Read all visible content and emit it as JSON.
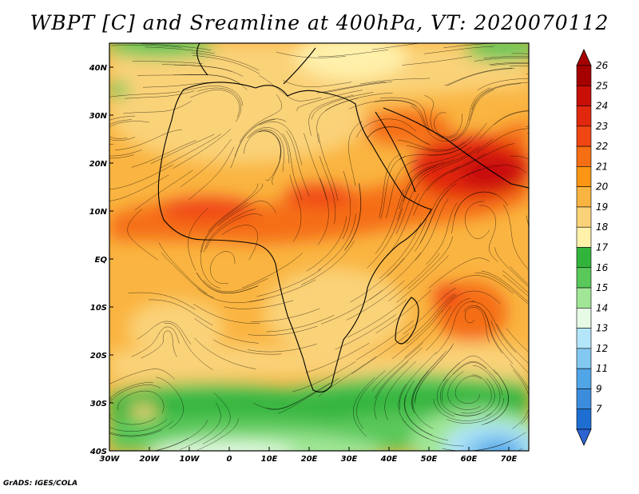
{
  "title": "WBPT [C] and Sreamline at 400hPa, VT: 2020070112",
  "credit": "GrADS: IGES/COLA",
  "map": {
    "lon_range": [
      -30,
      75
    ],
    "lat_range": [
      -40,
      45
    ],
    "lon_ticks": [
      {
        "value": -30,
        "label": "30W"
      },
      {
        "value": -20,
        "label": "20W"
      },
      {
        "value": -10,
        "label": "10W"
      },
      {
        "value": 0,
        "label": "0"
      },
      {
        "value": 10,
        "label": "10E"
      },
      {
        "value": 20,
        "label": "20E"
      },
      {
        "value": 30,
        "label": "30E"
      },
      {
        "value": 40,
        "label": "40E"
      },
      {
        "value": 50,
        "label": "50E"
      },
      {
        "value": 60,
        "label": "60E"
      },
      {
        "value": 70,
        "label": "70E"
      }
    ],
    "lat_ticks": [
      {
        "value": 40,
        "label": "40N"
      },
      {
        "value": 30,
        "label": "30N"
      },
      {
        "value": 20,
        "label": "20N"
      },
      {
        "value": 10,
        "label": "10N"
      },
      {
        "value": 0,
        "label": "EQ"
      },
      {
        "value": -10,
        "label": "10S"
      },
      {
        "value": -20,
        "label": "20S"
      },
      {
        "value": -30,
        "label": "30S"
      },
      {
        "value": -40,
        "label": "40S"
      }
    ]
  },
  "colorbar": {
    "levels": [
      {
        "label": "26",
        "color": "#a50000"
      },
      {
        "label": "25",
        "color": "#c80f08"
      },
      {
        "label": "24",
        "color": "#e1280f"
      },
      {
        "label": "23",
        "color": "#f04614"
      },
      {
        "label": "22",
        "color": "#f56e14"
      },
      {
        "label": "21",
        "color": "#fa9614"
      },
      {
        "label": "20",
        "color": "#fab441"
      },
      {
        "label": "19",
        "color": "#fad278"
      },
      {
        "label": "18",
        "color": "#fff0aa"
      },
      {
        "label": "17",
        "color": "#32b43c"
      },
      {
        "label": "16",
        "color": "#5ac85a"
      },
      {
        "label": "15",
        "color": "#a0e696"
      },
      {
        "label": "14",
        "color": "#e6fae6"
      },
      {
        "label": "13",
        "color": "#b4e6fa"
      },
      {
        "label": "12",
        "color": "#82c8f0"
      },
      {
        "label": "11",
        "color": "#50a5e6"
      },
      {
        "label": "9",
        "color": "#3c8cdc"
      },
      {
        "label": "7",
        "color": "#1e6ed2"
      }
    ],
    "bottom_triangle_color": "#2d64d2"
  }
}
